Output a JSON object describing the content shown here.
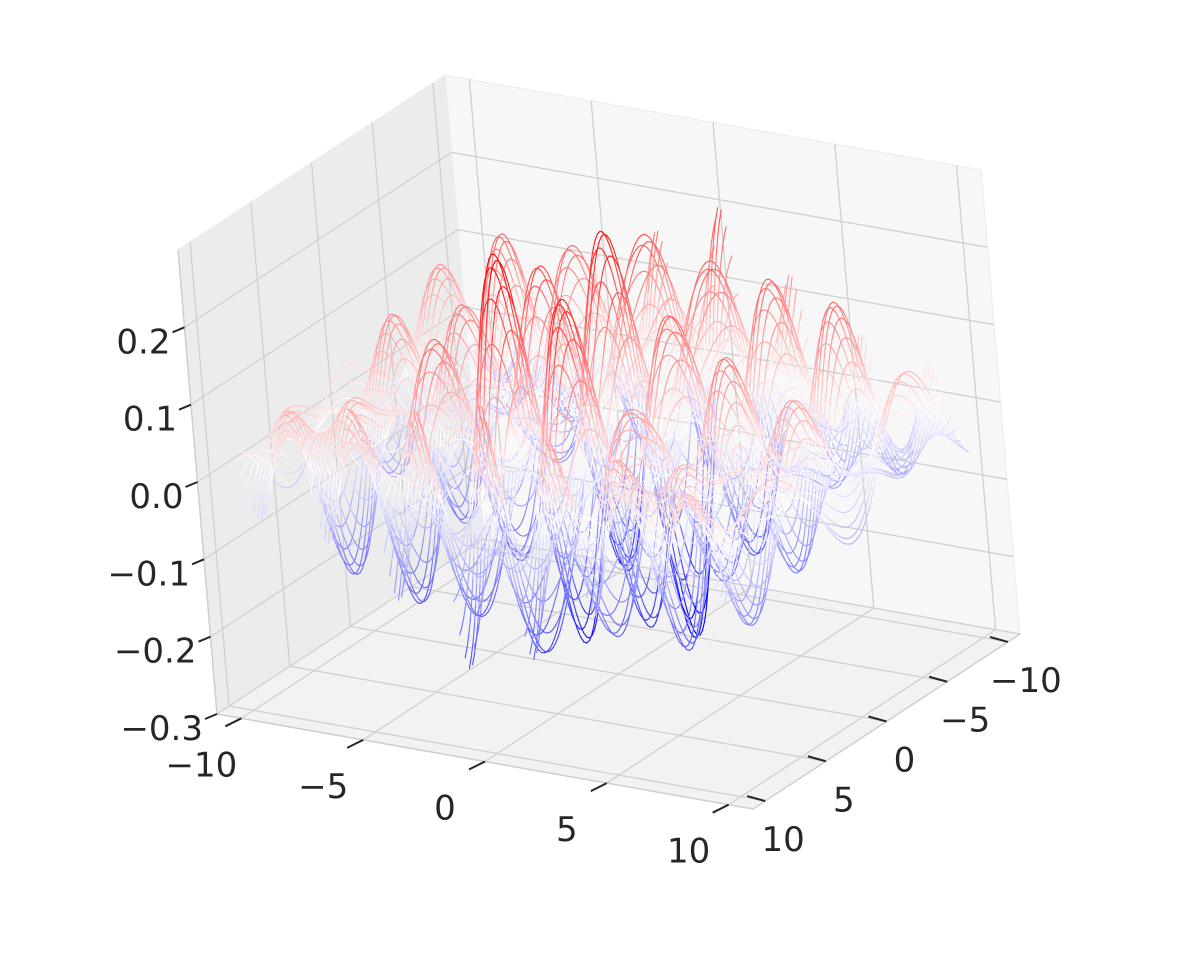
{
  "chart_data": {
    "type": "surface-3d-wireframe",
    "title": "",
    "xlabel": "",
    "ylabel": "",
    "zlabel": "",
    "x_ticks": [
      "−10",
      "−5",
      "0",
      "5",
      "10"
    ],
    "y_ticks": [
      "−10",
      "−5",
      "0",
      "5",
      "10"
    ],
    "z_ticks": [
      "−0.3",
      "−0.2",
      "−0.1",
      "0.0",
      "0.1",
      "0.2"
    ],
    "xlim": [
      -11,
      11
    ],
    "ylim": [
      -11,
      11
    ],
    "zlim": [
      -0.3,
      0.3
    ],
    "grid": true,
    "colormap": {
      "name": "bwr",
      "low": "#0000ff",
      "mid": "#ffffff",
      "high": "#ff0000"
    },
    "surface_range": {
      "x": [
        -10,
        10
      ],
      "y": [
        -10,
        10
      ],
      "z": [
        -0.27,
        0.28
      ]
    }
  }
}
